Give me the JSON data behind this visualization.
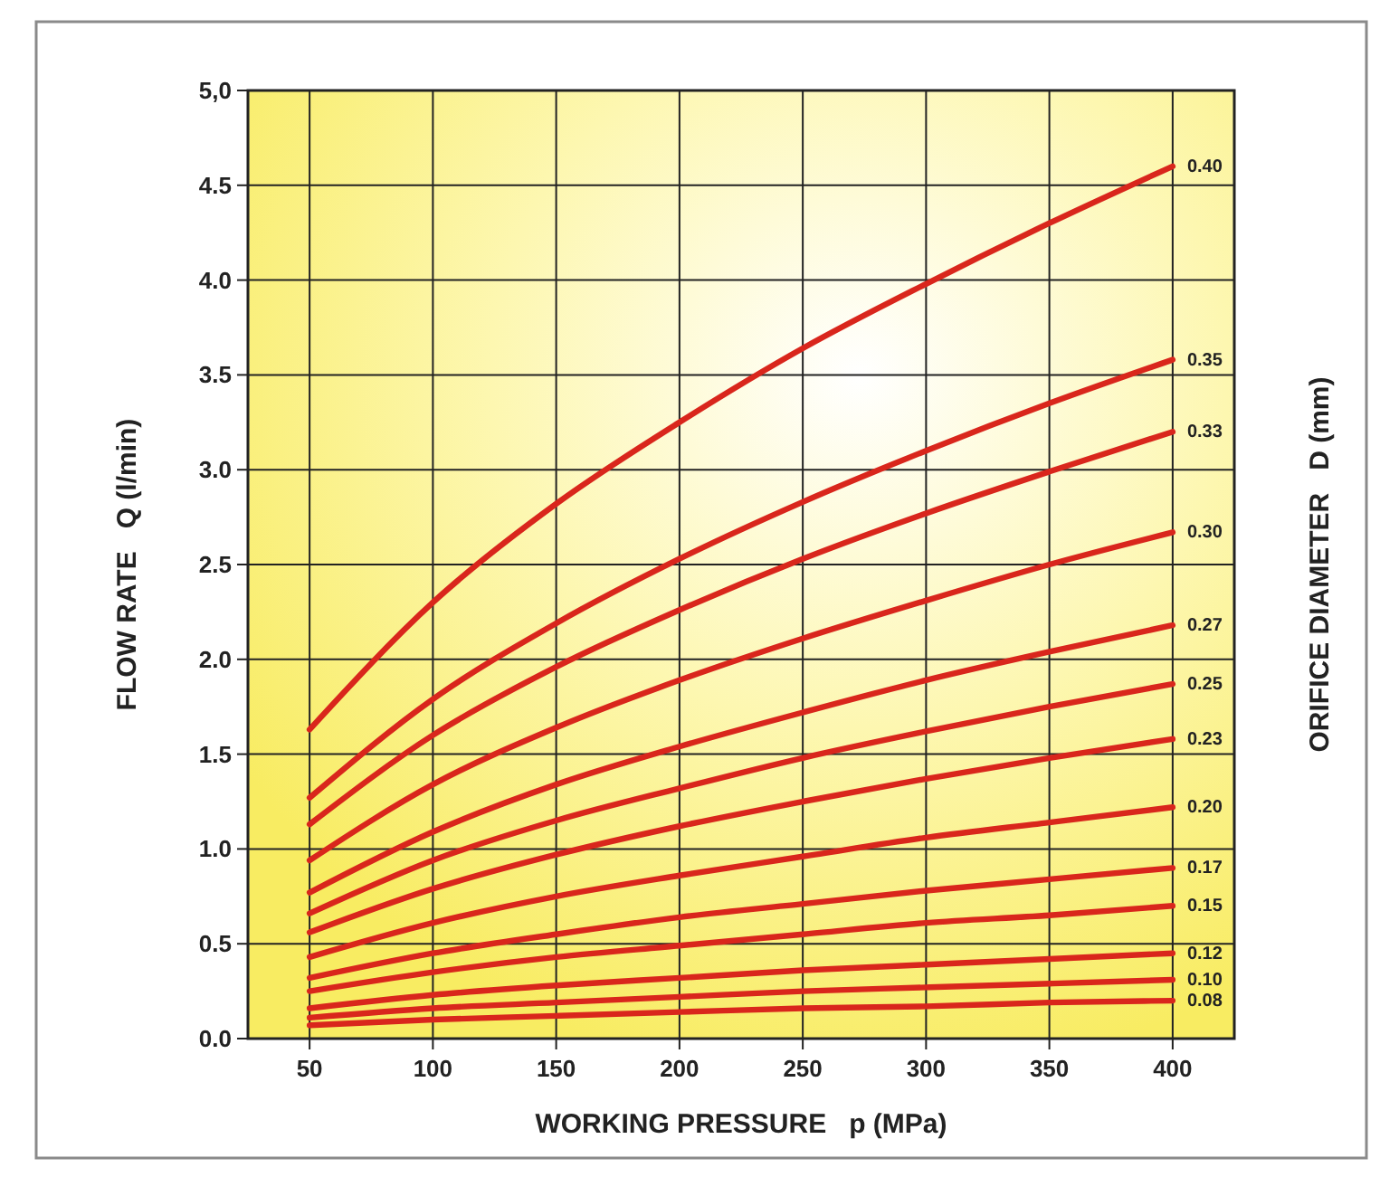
{
  "chart_data": {
    "type": "line",
    "xlabel": "WORKING PRESSURE   p (MPa)",
    "ylabel": "FLOW RATE   Q (l/min)",
    "y2label": "ORIFICE DIAMETER   D (mm)",
    "x": [
      50,
      100,
      150,
      200,
      250,
      300,
      350,
      400
    ],
    "xlim": [
      25,
      425
    ],
    "xticks": [
      50,
      100,
      150,
      200,
      250,
      300,
      350,
      400
    ],
    "ylim": [
      0,
      5
    ],
    "yticks": [
      {
        "value": 0,
        "label": "0.0"
      },
      {
        "value": 0.5,
        "label": "0.5"
      },
      {
        "value": 1,
        "label": "1.0"
      },
      {
        "value": 1.5,
        "label": "1.5"
      },
      {
        "value": 2,
        "label": "2.0"
      },
      {
        "value": 2.5,
        "label": "2.5"
      },
      {
        "value": 3,
        "label": "3.0"
      },
      {
        "value": 3.5,
        "label": "3.5"
      },
      {
        "value": 4,
        "label": "4.0"
      },
      {
        "value": 4.5,
        "label": "4.5"
      },
      {
        "value": 5,
        "label": "5,0"
      }
    ],
    "grid": true,
    "marker": "none",
    "line_style": "solid",
    "series": [
      {
        "name": "0.40",
        "color": "#d9261c",
        "values": [
          1.63,
          2.3,
          2.82,
          3.25,
          3.64,
          3.98,
          4.3,
          4.6
        ]
      },
      {
        "name": "0.35",
        "color": "#d9261c",
        "values": [
          1.27,
          1.79,
          2.19,
          2.53,
          2.83,
          3.1,
          3.35,
          3.58
        ]
      },
      {
        "name": "0.33",
        "color": "#d9261c",
        "values": [
          1.13,
          1.6,
          1.96,
          2.26,
          2.53,
          2.77,
          2.99,
          3.2
        ]
      },
      {
        "name": "0.30",
        "color": "#d9261c",
        "values": [
          0.94,
          1.34,
          1.64,
          1.89,
          2.11,
          2.31,
          2.5,
          2.67
        ]
      },
      {
        "name": "0.27",
        "color": "#d9261c",
        "values": [
          0.77,
          1.09,
          1.34,
          1.54,
          1.72,
          1.89,
          2.04,
          2.18
        ]
      },
      {
        "name": "0.25",
        "color": "#d9261c",
        "values": [
          0.66,
          0.94,
          1.15,
          1.32,
          1.48,
          1.62,
          1.75,
          1.87
        ]
      },
      {
        "name": "0.23",
        "color": "#d9261c",
        "values": [
          0.56,
          0.79,
          0.97,
          1.12,
          1.25,
          1.37,
          1.48,
          1.58
        ]
      },
      {
        "name": "0.20",
        "color": "#d9261c",
        "values": [
          0.43,
          0.61,
          0.75,
          0.86,
          0.96,
          1.06,
          1.14,
          1.22
        ]
      },
      {
        "name": "0.17",
        "color": "#d9261c",
        "values": [
          0.32,
          0.45,
          0.55,
          0.64,
          0.71,
          0.78,
          0.84,
          0.9
        ]
      },
      {
        "name": "0.15",
        "color": "#d9261c",
        "values": [
          0.25,
          0.35,
          0.43,
          0.49,
          0.55,
          0.61,
          0.65,
          0.7
        ]
      },
      {
        "name": "0.12",
        "color": "#d9261c",
        "values": [
          0.16,
          0.23,
          0.28,
          0.32,
          0.36,
          0.39,
          0.42,
          0.45
        ]
      },
      {
        "name": "0.10",
        "color": "#d9261c",
        "values": [
          0.11,
          0.16,
          0.19,
          0.22,
          0.25,
          0.27,
          0.29,
          0.31
        ]
      },
      {
        "name": "0.08",
        "color": "#d9261c",
        "values": [
          0.07,
          0.1,
          0.12,
          0.14,
          0.16,
          0.17,
          0.19,
          0.2
        ]
      }
    ]
  }
}
